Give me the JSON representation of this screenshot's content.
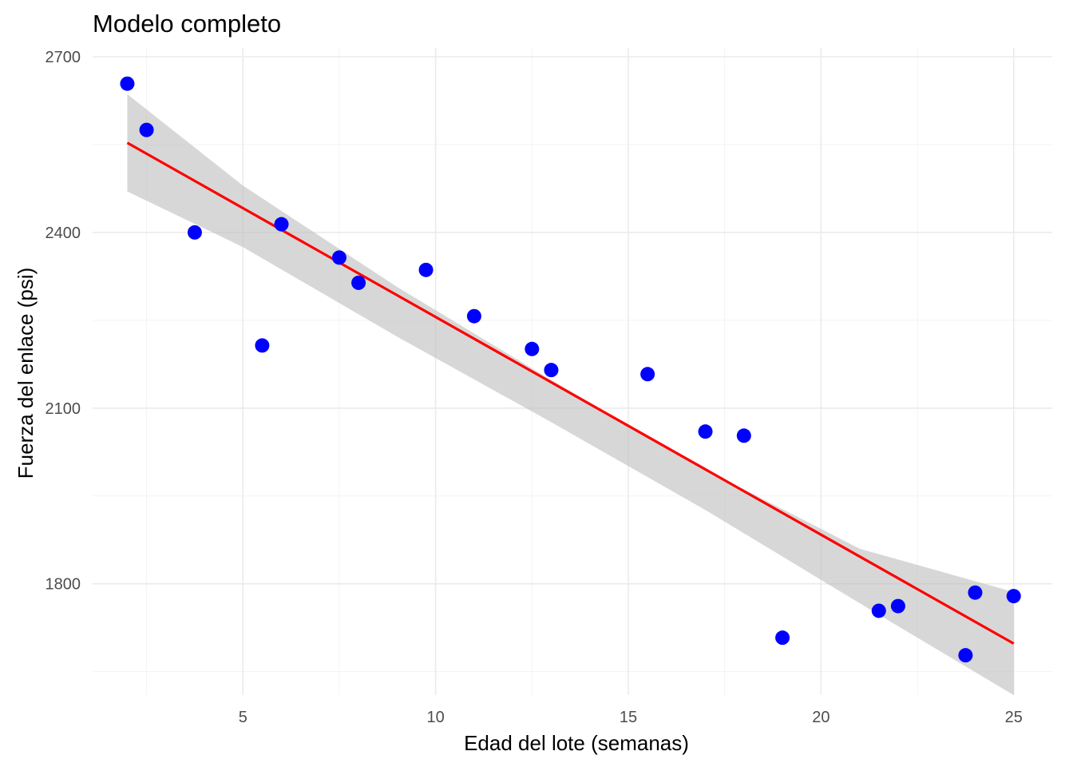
{
  "chart_data": {
    "type": "scatter",
    "title": "Modelo completo",
    "xlabel": "Edad del lote (semanas)",
    "ylabel": "Fuerza del enlace (psi)",
    "xlim": [
      1.1,
      26.0
    ],
    "ylim": [
      1610,
      2715
    ],
    "x_ticks": [
      5,
      10,
      15,
      20,
      25
    ],
    "x_tick_labels": [
      "5",
      "10",
      "15",
      "20",
      "25"
    ],
    "y_ticks": [
      1800,
      2100,
      2400,
      2700
    ],
    "y_tick_labels": [
      "1800",
      "2100",
      "2400",
      "2700"
    ],
    "x_minor_ticks": [
      2.5,
      7.5,
      12.5,
      17.5,
      22.5
    ],
    "y_minor_ticks": [
      1650,
      1950,
      2250,
      2550
    ],
    "grid": true,
    "legend": "none",
    "points": {
      "color": "#0000ff",
      "x": [
        2.0,
        2.5,
        3.75,
        5.5,
        6.0,
        7.5,
        8.0,
        9.75,
        11.0,
        12.5,
        13.0,
        15.5,
        17.0,
        18.0,
        19.0,
        21.5,
        22.0,
        23.75,
        24.0,
        25.0
      ],
      "y": [
        2654,
        2575,
        2400,
        2207,
        2414,
        2357,
        2314,
        2336,
        2257,
        2201,
        2165,
        2158,
        2060,
        2053,
        1708,
        1754,
        1762,
        1678,
        1785,
        1779
      ]
    },
    "fit": {
      "color": "#ff0000",
      "x": [
        2.0,
        25.0
      ],
      "y": [
        2553,
        1698
      ]
    },
    "confidence_band": {
      "color": "#bfbfbf",
      "x": [
        2.0,
        5.0,
        9.0,
        13.0,
        17.0,
        21.0,
        25.0
      ],
      "lower": [
        2470,
        2375,
        2222,
        2076,
        1926,
        1767,
        1610
      ],
      "upper": [
        2636,
        2480,
        2307,
        2148,
        1995,
        1860,
        1786
      ]
    }
  }
}
